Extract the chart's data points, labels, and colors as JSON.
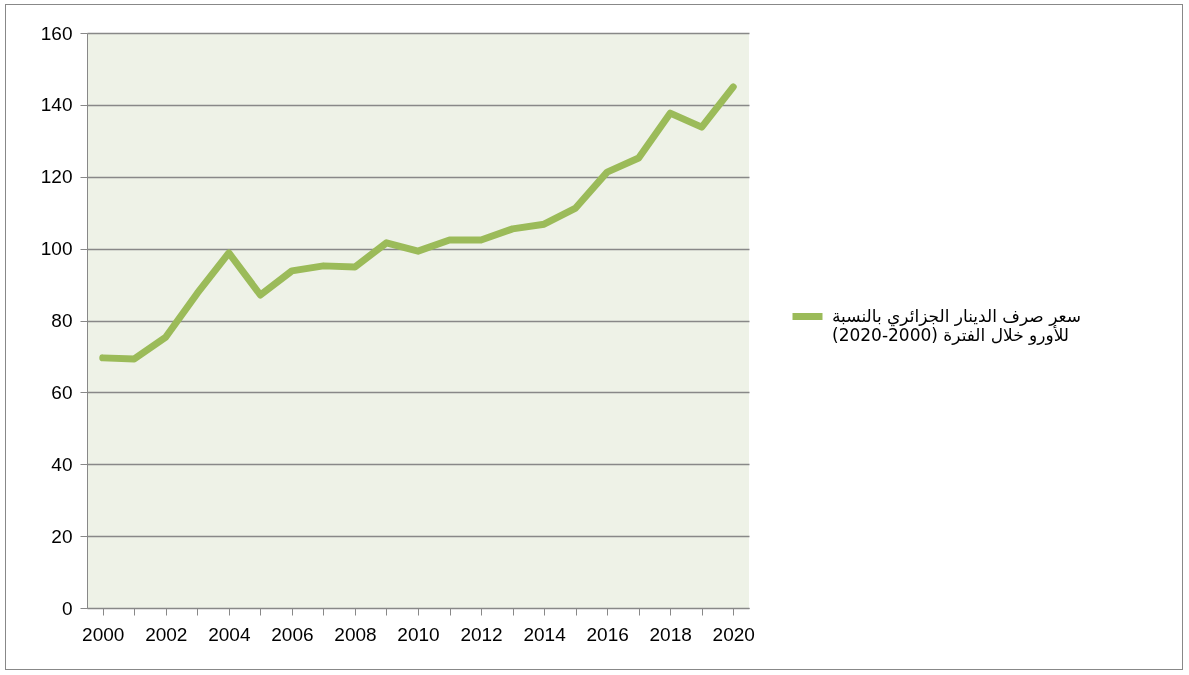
{
  "chart_data": {
    "type": "line",
    "categories": [
      "2000",
      null,
      "2002",
      null,
      "2004",
      null,
      "2006",
      null,
      "2008",
      null,
      "2010",
      null,
      "2012",
      null,
      "2014",
      null,
      "2016",
      null,
      "2018",
      null,
      "2020"
    ],
    "series": [
      {
        "name": "سعر صرف الدينار الجزائري بالنسبة للأورو خلال الفترة (2000-2020)",
        "color": "#9bbb59",
        "values": [
          69.6,
          69.3,
          75.4,
          87.6,
          98.8,
          87.1,
          93.8,
          95.2,
          94.9,
          101.6,
          99.3,
          102.4,
          102.4,
          105.5,
          106.8,
          111.3,
          121.3,
          125.2,
          137.7,
          133.8,
          145
        ]
      }
    ],
    "ylim": [
      0,
      160
    ],
    "yticks": [
      0,
      20,
      40,
      60,
      80,
      100,
      120,
      140,
      160
    ],
    "grid": "y",
    "legend": "right",
    "marker": "none",
    "line_style": "solid"
  }
}
